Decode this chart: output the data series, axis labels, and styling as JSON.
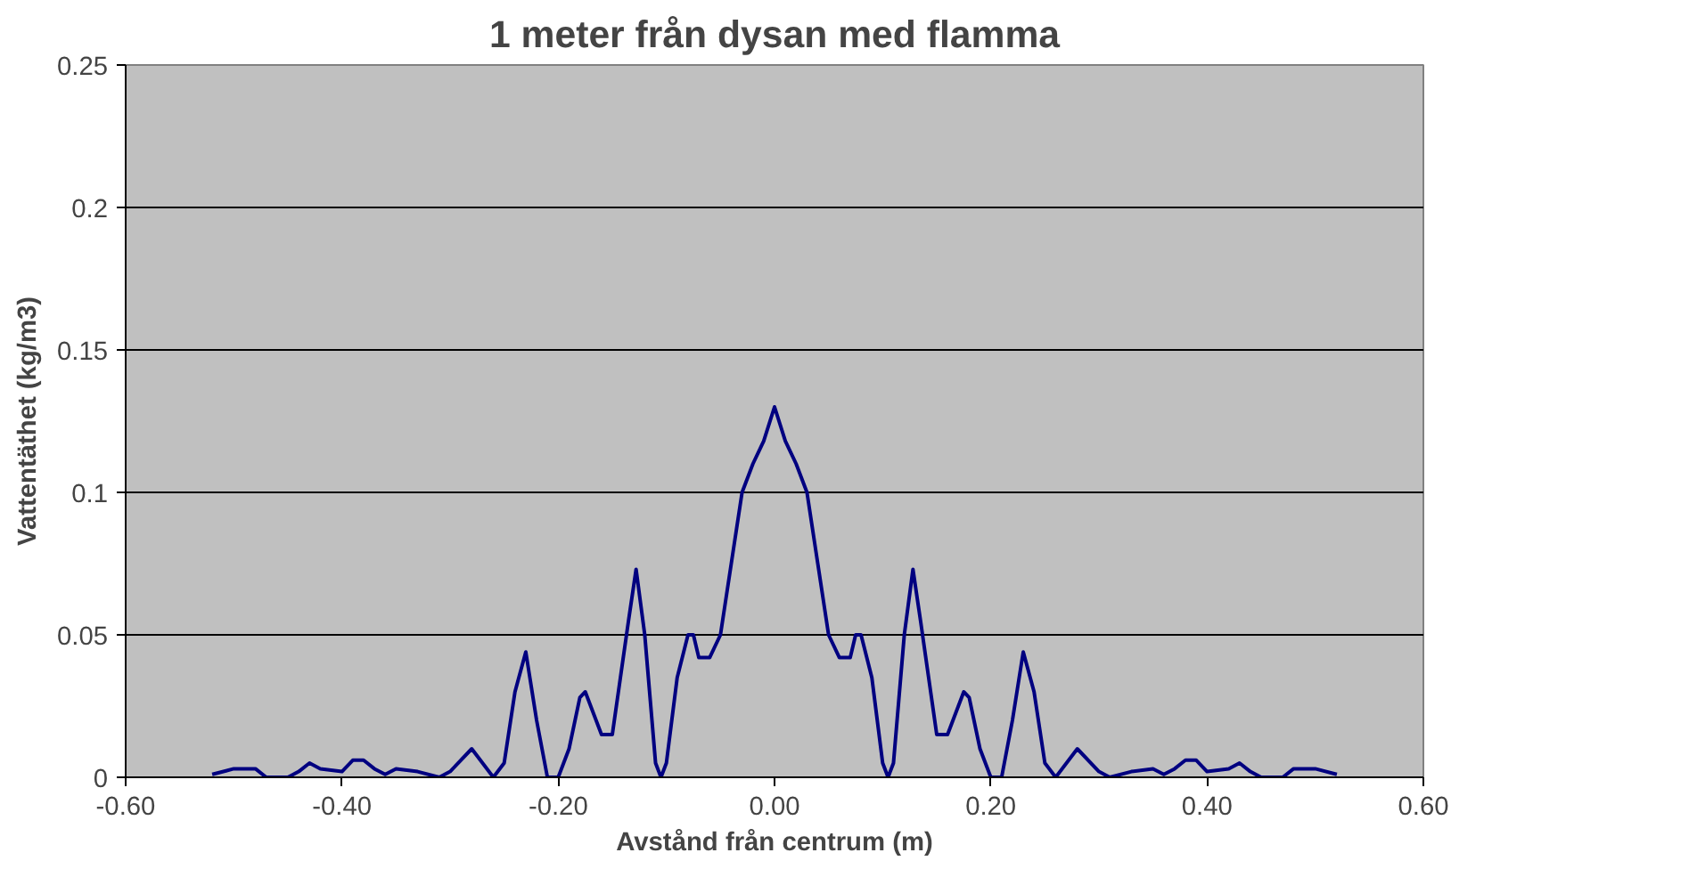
{
  "chart_data": {
    "type": "line",
    "title": "1 meter från dysan med flamma",
    "xlabel": "Avstånd från centrum (m)",
    "ylabel": "Vattentäthet (kg/m3)",
    "x": [
      -0.52,
      -0.5,
      -0.48,
      -0.47,
      -0.45,
      -0.44,
      -0.43,
      -0.42,
      -0.4,
      -0.39,
      -0.38,
      -0.37,
      -0.36,
      -0.35,
      -0.33,
      -0.31,
      -0.3,
      -0.28,
      -0.26,
      -0.25,
      -0.24,
      -0.23,
      -0.22,
      -0.21,
      -0.2,
      -0.19,
      -0.18,
      -0.175,
      -0.16,
      -0.15,
      -0.135,
      -0.128,
      -0.12,
      -0.11,
      -0.105,
      -0.1,
      -0.09,
      -0.08,
      -0.075,
      -0.07,
      -0.06,
      -0.05,
      -0.04,
      -0.03,
      -0.02,
      -0.01,
      0,
      0.01,
      0.02,
      0.03,
      0.04,
      0.05,
      0.06,
      0.07,
      0.075,
      0.08,
      0.09,
      0.1,
      0.105,
      0.11,
      0.12,
      0.128,
      0.135,
      0.15,
      0.16,
      0.175,
      0.18,
      0.19,
      0.2,
      0.21,
      0.22,
      0.23,
      0.24,
      0.25,
      0.26,
      0.28,
      0.3,
      0.31,
      0.33,
      0.35,
      0.36,
      0.37,
      0.38,
      0.39,
      0.4,
      0.42,
      0.43,
      0.44,
      0.45,
      0.47,
      0.48,
      0.5,
      0.52
    ],
    "series": [
      {
        "color": "#000080",
        "values": [
          0.001,
          0.003,
          0.003,
          0,
          0,
          0.002,
          0.005,
          0.003,
          0.002,
          0.006,
          0.006,
          0.003,
          0.001,
          0.003,
          0.002,
          0,
          0.002,
          0.01,
          0,
          0.005,
          0.03,
          0.044,
          0.02,
          0,
          0,
          0.01,
          0.028,
          0.03,
          0.015,
          0.015,
          0.055,
          0.073,
          0.05,
          0.005,
          0,
          0.005,
          0.035,
          0.05,
          0.05,
          0.042,
          0.042,
          0.05,
          0.075,
          0.1,
          0.11,
          0.118,
          0.13,
          0.118,
          0.11,
          0.1,
          0.075,
          0.05,
          0.042,
          0.042,
          0.05,
          0.05,
          0.035,
          0.005,
          0,
          0.005,
          0.05,
          0.073,
          0.055,
          0.015,
          0.015,
          0.03,
          0.028,
          0.01,
          0,
          0,
          0.02,
          0.044,
          0.03,
          0.005,
          0,
          0.01,
          0.002,
          0,
          0.002,
          0.003,
          0.001,
          0.003,
          0.006,
          0.006,
          0.002,
          0.003,
          0.005,
          0.002,
          0,
          0,
          0.003,
          0.003,
          0.001
        ]
      }
    ],
    "xlim": [
      -0.6,
      0.6
    ],
    "xticks": [
      {
        "value": -0.6,
        "label": "-0.60"
      },
      {
        "value": -0.4,
        "label": "-0.40"
      },
      {
        "value": -0.2,
        "label": "-0.20"
      },
      {
        "value": 0,
        "label": "0.00"
      },
      {
        "value": 0.2,
        "label": "0.20"
      },
      {
        "value": 0.4,
        "label": "0.40"
      },
      {
        "value": 0.6,
        "label": "0.60"
      }
    ],
    "ylim": [
      0,
      0.25
    ],
    "yticks": [
      0,
      0.05,
      0.1,
      0.15,
      0.2,
      0.25
    ],
    "grid": "y"
  }
}
